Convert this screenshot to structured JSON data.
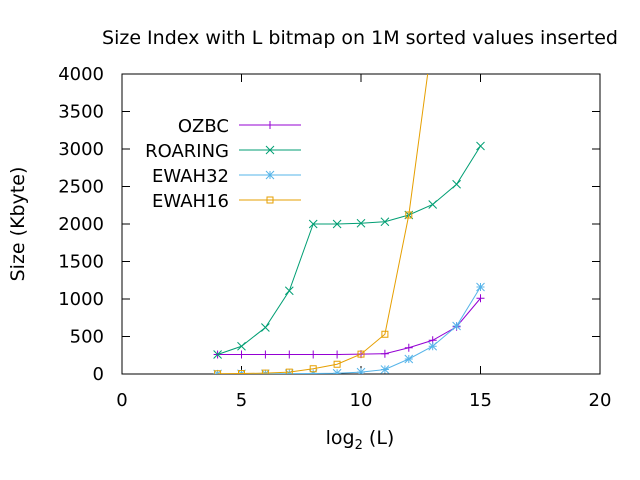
{
  "chart_data": {
    "type": "line",
    "title": "Size Index with L bitmap on 1M sorted values inserted",
    "xlabel": {
      "base": "log",
      "sub": "2",
      "rest": " (L)"
    },
    "ylabel": "Size (Kbyte)",
    "xlim": [
      0,
      20
    ],
    "ylim": [
      0,
      4000
    ],
    "xticks": [
      0,
      5,
      10,
      15,
      20
    ],
    "yticks": [
      0,
      500,
      1000,
      1500,
      2000,
      2500,
      3000,
      3500,
      4000
    ],
    "grid": false,
    "legend_position": "top-left",
    "series": [
      {
        "name": "OZBC",
        "color": "#9400d3",
        "marker": "plus",
        "x": [
          4,
          5,
          6,
          7,
          8,
          9,
          10,
          11,
          12,
          13,
          14,
          15
        ],
        "y": [
          260,
          260,
          260,
          260,
          260,
          260,
          265,
          270,
          350,
          450,
          630,
          1010
        ]
      },
      {
        "name": "ROARING",
        "color": "#009e73",
        "marker": "cross",
        "x": [
          4,
          5,
          6,
          7,
          8,
          9,
          10,
          11,
          12,
          13,
          14,
          15
        ],
        "y": [
          260,
          370,
          620,
          1110,
          2000,
          2000,
          2010,
          2030,
          2120,
          2260,
          2530,
          3040
        ]
      },
      {
        "name": "EWAH32",
        "color": "#56b4e9",
        "marker": "star",
        "x": [
          4,
          5,
          6,
          7,
          8,
          9,
          10,
          11,
          12,
          13,
          14,
          15
        ],
        "y": [
          2,
          3,
          4,
          5,
          7,
          10,
          25,
          60,
          200,
          370,
          640,
          1160
        ]
      },
      {
        "name": "EWAH16",
        "color": "#e69f00",
        "marker": "square",
        "x": [
          4,
          5,
          6,
          7,
          8,
          9,
          10,
          11,
          12,
          13
        ],
        "y": [
          3,
          6,
          12,
          25,
          70,
          130,
          265,
          530,
          2120,
          4500
        ]
      }
    ]
  }
}
